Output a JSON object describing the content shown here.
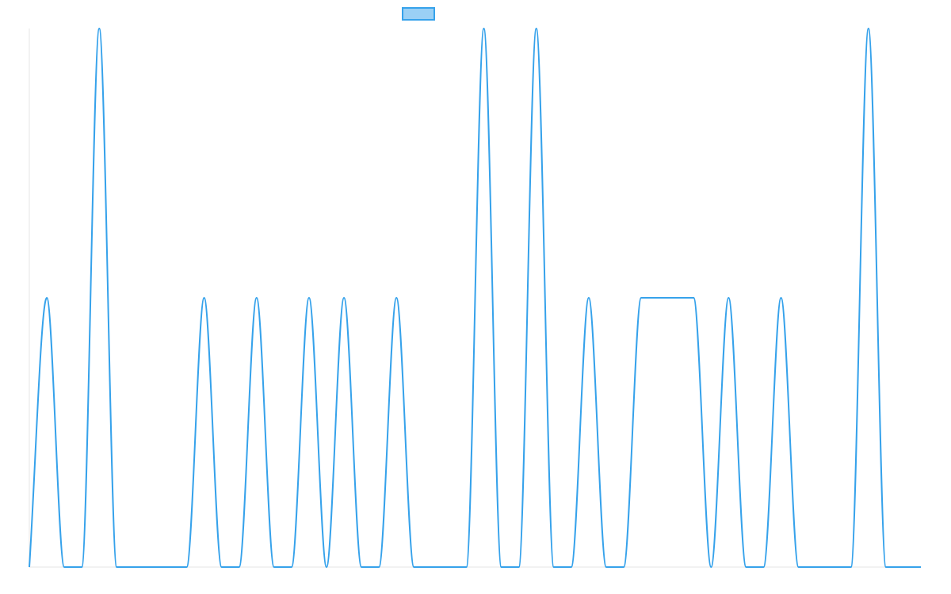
{
  "colors": {
    "line": "#36a2eb",
    "legend_fill": "#9ad0f5",
    "axis": "#e5e5e5"
  },
  "chart_data": {
    "type": "line",
    "title": "",
    "xlabel": "",
    "ylabel": "",
    "legend": {
      "position": "top",
      "entries": [
        ""
      ]
    },
    "grid": false,
    "x": [
      0,
      1,
      2,
      3,
      4,
      5,
      6,
      7,
      8,
      9,
      10,
      11,
      12,
      13,
      14,
      15,
      16,
      17,
      18,
      19,
      20,
      21,
      22,
      23,
      24,
      25,
      26,
      27,
      28,
      29,
      30,
      31,
      32,
      33,
      34,
      35,
      36,
      37,
      38,
      39,
      40,
      41,
      42,
      43,
      44,
      45,
      46,
      47,
      48,
      49,
      50,
      51
    ],
    "series": [
      {
        "name": "",
        "values": [
          0,
          1,
          0,
          0,
          2,
          0,
          0,
          0,
          0,
          0,
          1,
          0,
          0,
          1,
          0,
          0,
          1,
          0,
          1,
          0,
          0,
          1,
          0,
          0,
          0,
          0,
          2,
          0,
          0,
          2,
          0,
          0,
          1,
          0,
          0,
          1,
          1,
          1,
          1,
          0,
          1,
          0,
          0,
          1,
          0,
          0,
          0,
          0,
          2,
          0,
          0,
          0
        ]
      }
    ],
    "xlim": [
      0,
      51
    ],
    "ylim": [
      0,
      2
    ]
  }
}
